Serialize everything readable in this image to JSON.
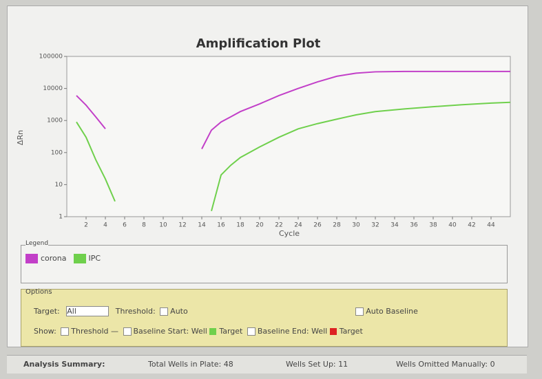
{
  "chart_data": {
    "type": "line",
    "title": "Amplification Plot",
    "x_label": "Cycle",
    "y_label": "ΔRn",
    "log_scale_y": true,
    "legend_title": "Legend",
    "x": [
      1,
      2,
      3,
      4,
      5,
      14,
      15,
      16,
      17,
      18,
      20,
      22,
      24,
      26,
      28,
      30,
      32,
      35,
      38,
      41,
      44,
      46
    ],
    "series": [
      {
        "name": "corona",
        "color": "#c23fc8",
        "values": [
          6000,
          3000,
          1300,
          550,
          null,
          130,
          500,
          900,
          1300,
          1900,
          3300,
          6000,
          10000,
          16000,
          24000,
          30000,
          33000,
          34000,
          34000,
          34000,
          34000,
          34000
        ]
      },
      {
        "name": "IPC",
        "color": "#6fd04c",
        "values": [
          900,
          300,
          60,
          15,
          3,
          null,
          1.5,
          20,
          40,
          70,
          150,
          300,
          550,
          800,
          1100,
          1500,
          1900,
          2300,
          2700,
          3100,
          3500,
          3700
        ]
      }
    ],
    "xlim": [
      0,
      46
    ],
    "xticks": [
      2,
      4,
      6,
      8,
      10,
      12,
      14,
      16,
      18,
      20,
      22,
      24,
      26,
      28,
      30,
      32,
      34,
      36,
      38,
      40,
      42,
      44
    ],
    "ylim": [
      1,
      100000
    ],
    "yticks": [
      1,
      10,
      100,
      1000,
      10000,
      100000
    ]
  },
  "options": {
    "heading": "Options",
    "target_label": "Target:",
    "target_value": "All",
    "threshold_label": "Threshold:",
    "threshold_value": "Auto",
    "auto_baseline": "Auto Baseline",
    "show_label": "Show:",
    "show_threshold": "Threshold",
    "baseline_start": "Baseline Start: Well",
    "target_1": "Target",
    "baseline_end": "Baseline End: Well",
    "target_2": "Target"
  },
  "summary": {
    "heading": "Analysis Summary:",
    "total": "Total Wells in Plate: 48",
    "setup": "Wells Set Up: 11",
    "omitted": "Wells Omitted Manually: 0"
  }
}
